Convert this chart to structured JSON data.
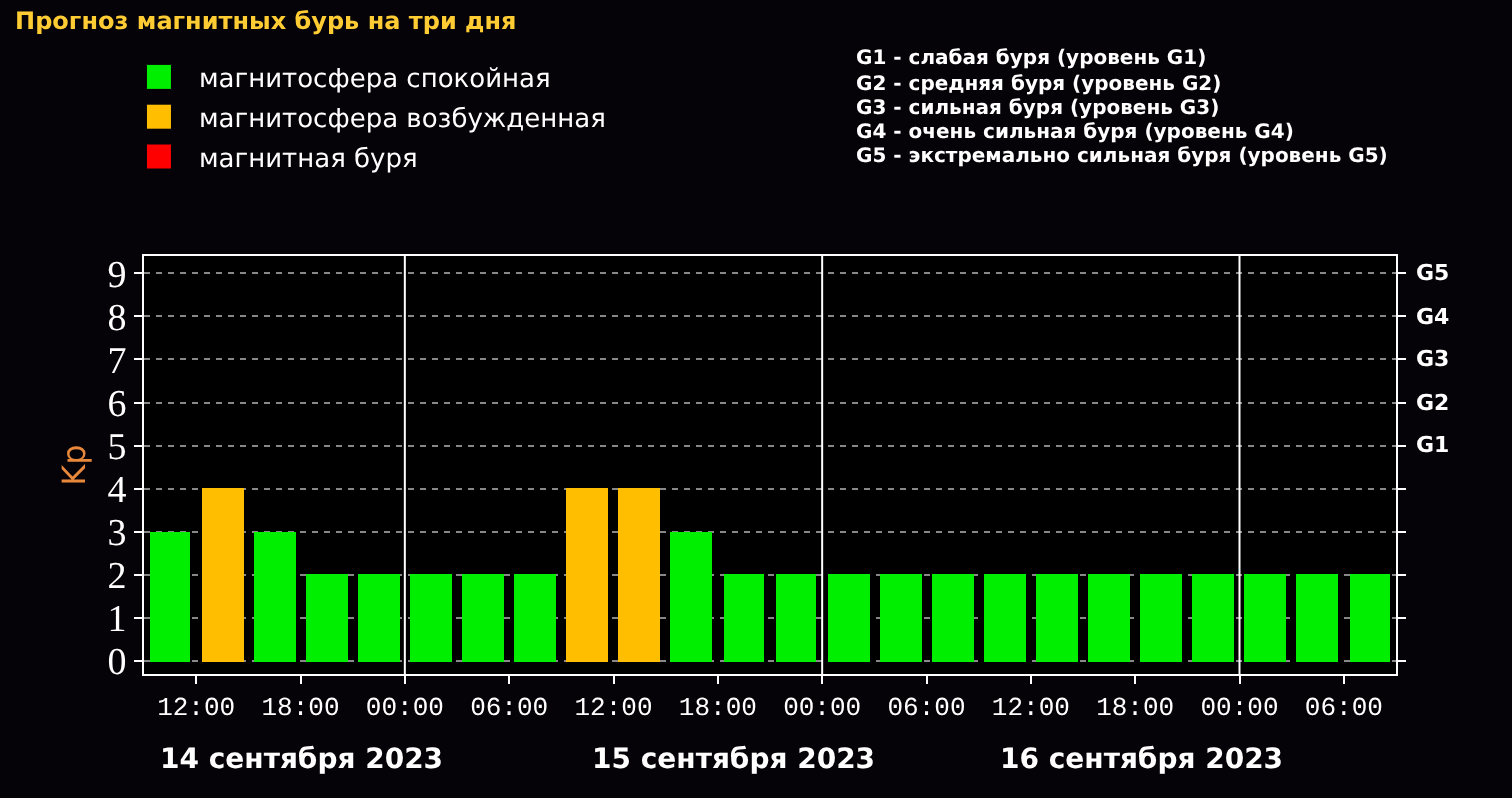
{
  "chart_data": {
    "type": "bar",
    "title": "Прогноз магнитных бурь на три дня",
    "ylabel": "Kp",
    "x": [
      "2023-09-14T10:30",
      "2023-09-14T13:30",
      "2023-09-14T16:30",
      "2023-09-14T19:30",
      "2023-09-14T22:30",
      "2023-09-15T01:30",
      "2023-09-15T04:30",
      "2023-09-15T07:30",
      "2023-09-15T10:30",
      "2023-09-15T13:30",
      "2023-09-15T16:30",
      "2023-09-15T19:30",
      "2023-09-15T22:30",
      "2023-09-16T01:30",
      "2023-09-16T04:30",
      "2023-09-16T07:30",
      "2023-09-16T10:30",
      "2023-09-16T13:30",
      "2023-09-16T16:30",
      "2023-09-16T19:30",
      "2023-09-16T22:30",
      "2023-09-17T01:30",
      "2023-09-17T04:30",
      "2023-09-17T07:30"
    ],
    "series": [
      {
        "name": "магнитосфера спокойная",
        "color": "#00ee00",
        "values": [
          3,
          null,
          3,
          2,
          2,
          2,
          2,
          2,
          null,
          null,
          3,
          2,
          2,
          2,
          2,
          2,
          2,
          2,
          2,
          2,
          2,
          2,
          2,
          2
        ]
      },
      {
        "name": "магнитосфера возбужденная",
        "color": "#ffbf00",
        "values": [
          null,
          4,
          null,
          null,
          null,
          null,
          null,
          null,
          4,
          4,
          null,
          null,
          null,
          null,
          null,
          null,
          null,
          null,
          null,
          null,
          null,
          null,
          null,
          null
        ]
      },
      {
        "name": "магнитная буря",
        "color": "#ff0000",
        "values": [
          null,
          null,
          null,
          null,
          null,
          null,
          null,
          null,
          null,
          null,
          null,
          null,
          null,
          null,
          null,
          null,
          null,
          null,
          null,
          null,
          null,
          null,
          null,
          null
        ]
      }
    ],
    "xlim": [
      "2023-09-14T09:00",
      "2023-09-17T09:00"
    ],
    "xticks": [
      {
        "value": "2023-09-14T12:00",
        "label": "12:00"
      },
      {
        "value": "2023-09-14T18:00",
        "label": "18:00"
      },
      {
        "value": "2023-09-15T00:00",
        "label": "00:00"
      },
      {
        "value": "2023-09-15T06:00",
        "label": "06:00"
      },
      {
        "value": "2023-09-15T12:00",
        "label": "12:00"
      },
      {
        "value": "2023-09-15T18:00",
        "label": "18:00"
      },
      {
        "value": "2023-09-16T00:00",
        "label": "00:00"
      },
      {
        "value": "2023-09-16T06:00",
        "label": "06:00"
      },
      {
        "value": "2023-09-16T12:00",
        "label": "12:00"
      },
      {
        "value": "2023-09-16T18:00",
        "label": "18:00"
      },
      {
        "value": "2023-09-17T00:00",
        "label": "00:00"
      },
      {
        "value": "2023-09-17T06:00",
        "label": "06:00"
      }
    ],
    "ylim": [
      -0.3,
      9.4
    ],
    "yticks": [
      0,
      1,
      2,
      3,
      4,
      5,
      6,
      7,
      8,
      9
    ],
    "ref_lines": [
      {
        "axis": "x",
        "value": "2023-09-15T00:00",
        "label": null,
        "color": "#ffffff"
      },
      {
        "axis": "x",
        "value": "2023-09-16T00:00",
        "label": null,
        "color": "#ffffff"
      },
      {
        "axis": "x",
        "value": "2023-09-17T00:00",
        "label": null,
        "color": "#ffffff"
      }
    ],
    "annotations": [
      "G1 - слабая буря (уровень G1)",
      "G2 - средняя буря (уровень G2)",
      "G3 - сильная буря (уровень G3)",
      "G4 - очень сильная буря (уровень G4)",
      "G5 - экстремально сильная буря (уровень G5)",
      "14 сентября 2023",
      "15 сентября 2023",
      "16 сентября 2023",
      "G1",
      "G2",
      "G3",
      "G4",
      "G5"
    ],
    "grid": "y",
    "line_style": "dotted",
    "legend": "top left"
  }
}
